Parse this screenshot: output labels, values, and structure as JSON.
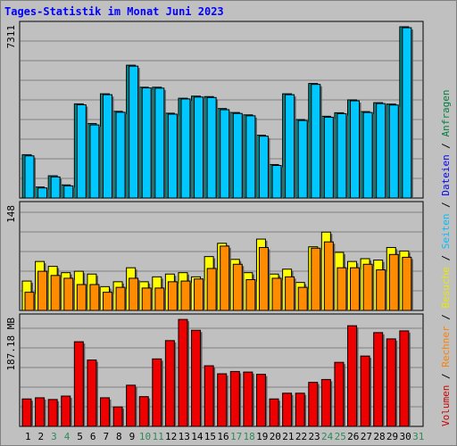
{
  "title": "Tages-Statistik im Monat Juni 2023",
  "legend": {
    "items": [
      {
        "text": "Volumen",
        "color": "#cc0000"
      },
      {
        "text": "Rechner",
        "color": "#ff8000"
      },
      {
        "text": "Besuche",
        "color": "#e8e800"
      },
      {
        "text": "Seiten",
        "color": "#00c0ff"
      },
      {
        "text": "Dateien",
        "color": "#0000ff"
      },
      {
        "text": "Anfragen",
        "color": "#008040"
      }
    ],
    "separator": " / "
  },
  "colors": {
    "anfragen": "#008b8b",
    "dateien": "#00c8ff",
    "besuche": "#ffff00",
    "rechner": "#ff8c00",
    "volumen": "#ee0000",
    "weekend_day": "#2e8b57",
    "weekday": "#000000"
  },
  "chart_data": [
    {
      "type": "bar",
      "panel": "top",
      "y_max_label": "7311",
      "ylim": [
        0,
        7311
      ],
      "x": [
        1,
        2,
        3,
        4,
        5,
        6,
        7,
        8,
        9,
        10,
        11,
        12,
        13,
        14,
        15,
        16,
        17,
        18,
        19,
        20,
        21,
        22,
        23,
        24,
        25,
        26,
        27,
        28,
        29,
        30
      ],
      "series": [
        {
          "name": "Anfragen",
          "values": [
            1850,
            470,
            950,
            560,
            4020,
            3180,
            4450,
            3700,
            5670,
            4730,
            4730,
            3620,
            4260,
            4350,
            4330,
            3820,
            3650,
            3550,
            2680,
            1430,
            4450,
            3350,
            4890,
            3490,
            3640,
            4190,
            3690,
            4070,
            4010,
            7311
          ]
        },
        {
          "name": "Dateien",
          "values": [
            1800,
            430,
            900,
            520,
            3980,
            3120,
            4410,
            3660,
            5630,
            4700,
            4690,
            3580,
            4230,
            4310,
            4290,
            3770,
            3610,
            3510,
            2640,
            1390,
            4410,
            3310,
            4850,
            3450,
            3600,
            4150,
            3650,
            4030,
            3970,
            7270
          ]
        }
      ]
    },
    {
      "type": "bar",
      "panel": "middle",
      "y_max_label": "148",
      "ylim": [
        0,
        148
      ],
      "x": [
        1,
        2,
        3,
        4,
        5,
        6,
        7,
        8,
        9,
        10,
        11,
        12,
        13,
        14,
        15,
        16,
        17,
        18,
        19,
        20,
        21,
        22,
        23,
        24,
        25,
        26,
        27,
        28,
        29,
        30
      ],
      "series": [
        {
          "name": "Besuche",
          "values": [
            42,
            70,
            63,
            54,
            56,
            52,
            34,
            41,
            61,
            41,
            48,
            52,
            54,
            48,
            77,
            96,
            73,
            54,
            102,
            52,
            59,
            40,
            91,
            112,
            83,
            70,
            74,
            72,
            90,
            85
          ]
        },
        {
          "name": "Rechner",
          "values": [
            26,
            56,
            50,
            46,
            37,
            37,
            26,
            33,
            46,
            32,
            32,
            41,
            42,
            45,
            60,
            92,
            66,
            44,
            90,
            46,
            48,
            33,
            89,
            98,
            61,
            61,
            66,
            58,
            80,
            76
          ]
        }
      ]
    },
    {
      "type": "bar",
      "panel": "bottom",
      "y_max_label": "187.18 MB",
      "ylim": [
        0,
        187.18
      ],
      "x": [
        1,
        2,
        3,
        4,
        5,
        6,
        7,
        8,
        9,
        10,
        11,
        12,
        13,
        14,
        15,
        16,
        17,
        18,
        19,
        20,
        21,
        22,
        23,
        24,
        25,
        26,
        27,
        28,
        29,
        30
      ],
      "series": [
        {
          "name": "Volumen",
          "values": [
            48,
            50,
            47,
            53,
            148,
            116,
            50,
            34,
            72,
            52,
            118,
            150,
            187,
            168,
            106,
            92,
            96,
            95,
            91,
            48,
            58,
            58,
            77,
            82,
            112,
            176,
            123,
            164,
            153,
            167
          ]
        }
      ]
    }
  ],
  "x_axis": {
    "labels": [
      "1",
      "2",
      "3",
      "4",
      "5",
      "6",
      "7",
      "8",
      "9",
      "10",
      "11",
      "12",
      "13",
      "14",
      "15",
      "16",
      "17",
      "18",
      "19",
      "20",
      "21",
      "22",
      "23",
      "24",
      "25",
      "26",
      "27",
      "28",
      "29",
      "30",
      "31"
    ],
    "weekend": [
      3,
      4,
      10,
      11,
      17,
      18,
      24,
      25,
      31
    ]
  }
}
